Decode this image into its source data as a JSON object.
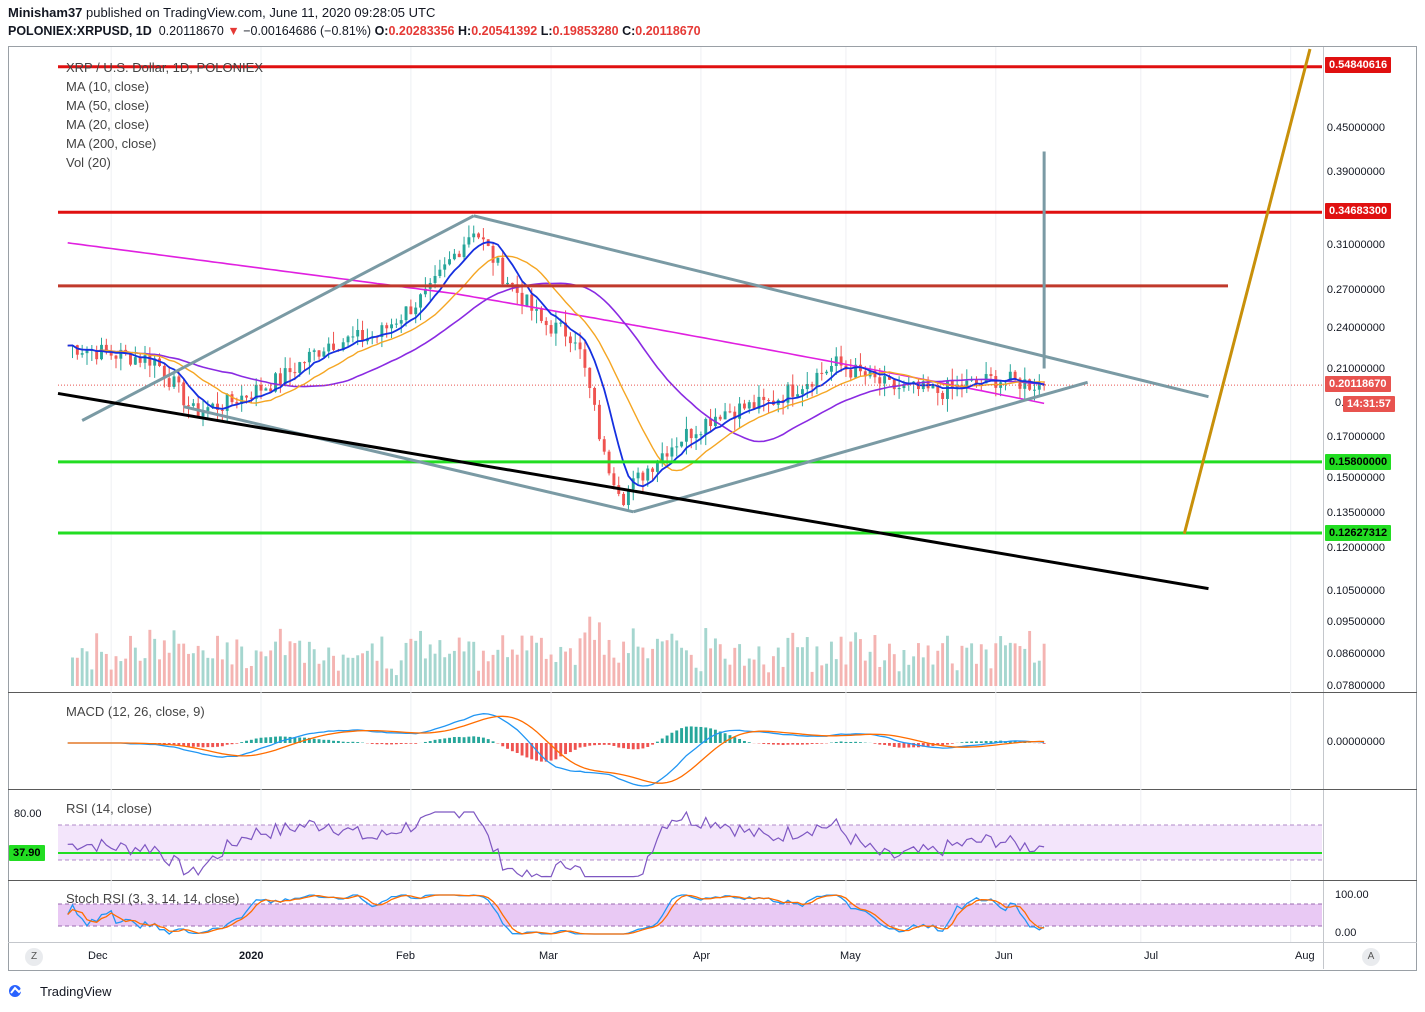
{
  "header": {
    "author": "Minisham37",
    "published_text": "published on TradingView.com, June 11, 2020 09:28:05 UTC",
    "symbol": "POLONIEX:XRPUSD, 1D",
    "price": "0.20118670",
    "change": "−0.00164686 (−0.81%)",
    "o_label": "O:",
    "o_value": "0.20283356",
    "h_label": "H:",
    "h_value": "0.20541392",
    "l_label": "L:",
    "l_value": "0.19853280",
    "c_label": "C:",
    "c_value": "0.20118670"
  },
  "legend": {
    "title": "XRP / U.S. Dollar, 1D, POLONIEX",
    "ma10": "MA (10, close)",
    "ma50": "MA (50, close)",
    "ma20": "MA (20, close)",
    "ma200": "MA (200, close)",
    "vol": "Vol (20)"
  },
  "macd_label": "MACD (12, 26, close, 9)",
  "rsi_label": "RSI (14, close)",
  "stoch_label": "Stoch RSI (3, 3, 14, 14, close)",
  "price_axis": [
    "0.45000000",
    "0.39000000",
    "0.31000000",
    "0.27000000",
    "0.24000000",
    "0.21000000",
    "0.17000000",
    "0.15000000",
    "0.13500000",
    "0.12000000",
    "0.10500000",
    "0.09500000",
    "0.08600000",
    "0.07800000"
  ],
  "price_axis_partial": "0.",
  "macd_axis": "0.00000000",
  "rsi_axis": [
    "80.00"
  ],
  "stoch_axis": [
    "100.00",
    "0.00"
  ],
  "tags": {
    "r1": "0.54840616",
    "r2": "0.34683300",
    "cur": "0.20118670",
    "timer": "14:31:57",
    "s1": "0.15800000",
    "s2": "0.12627312",
    "rsi": "37.90"
  },
  "x_axis": [
    "Dec",
    "2020",
    "Feb",
    "Mar",
    "Apr",
    "May",
    "Jun",
    "Jul",
    "Aug"
  ],
  "z_button": "Z",
  "a_button": "A",
  "footer_brand": "TradingView",
  "colors": {
    "up": "#26a69a",
    "down": "#ef5350",
    "resistance": "#e01010",
    "support": "#22dd22",
    "ma200": "#e020e0",
    "ma50": "#8a2be2",
    "ma20": "#f5a623",
    "ma10": "#1530e0",
    "triangle": "#7a9aa4",
    "projection": "#c8900a"
  },
  "chart_data": {
    "type": "candlestick",
    "title": "XRP / U.S. Dollar, 1D, POLONIEX",
    "x_range": [
      "2019-11-20",
      "2020-08-05"
    ],
    "y_scale": "log",
    "y_range": [
      0.078,
      0.58
    ],
    "months": [
      "Dec",
      "2020",
      "Feb",
      "Mar",
      "Apr",
      "May",
      "Jun",
      "Jul",
      "Aug"
    ],
    "price_close_approx": [
      [
        "2019-11-22",
        0.228
      ],
      [
        "2019-12-01",
        0.222
      ],
      [
        "2019-12-10",
        0.218
      ],
      [
        "2019-12-18",
        0.185
      ],
      [
        "2019-12-25",
        0.19
      ],
      [
        "2020-01-05",
        0.205
      ],
      [
        "2020-01-15",
        0.23
      ],
      [
        "2020-01-25",
        0.235
      ],
      [
        "2020-02-05",
        0.27
      ],
      [
        "2020-02-14",
        0.33
      ],
      [
        "2020-02-20",
        0.285
      ],
      [
        "2020-02-28",
        0.245
      ],
      [
        "2020-03-06",
        0.235
      ],
      [
        "2020-03-12",
        0.16
      ],
      [
        "2020-03-16",
        0.142
      ],
      [
        "2020-03-25",
        0.165
      ],
      [
        "2020-04-05",
        0.185
      ],
      [
        "2020-04-15",
        0.19
      ],
      [
        "2020-04-29",
        0.215
      ],
      [
        "2020-05-10",
        0.2
      ],
      [
        "2020-05-20",
        0.197
      ],
      [
        "2020-06-01",
        0.205
      ],
      [
        "2020-06-11",
        0.2012
      ]
    ],
    "horizontal_levels": [
      {
        "name": "resistance",
        "value": 0.54840616
      },
      {
        "name": "resistance",
        "value": 0.346833
      },
      {
        "name": "level",
        "value": 0.275
      },
      {
        "name": "support",
        "value": 0.158
      },
      {
        "name": "support",
        "value": 0.12627312
      }
    ],
    "current_price": 0.2011867,
    "rsi_current": 37.9,
    "rsi_band": [
      30,
      70
    ],
    "stoch_band": [
      20,
      80
    ]
  }
}
